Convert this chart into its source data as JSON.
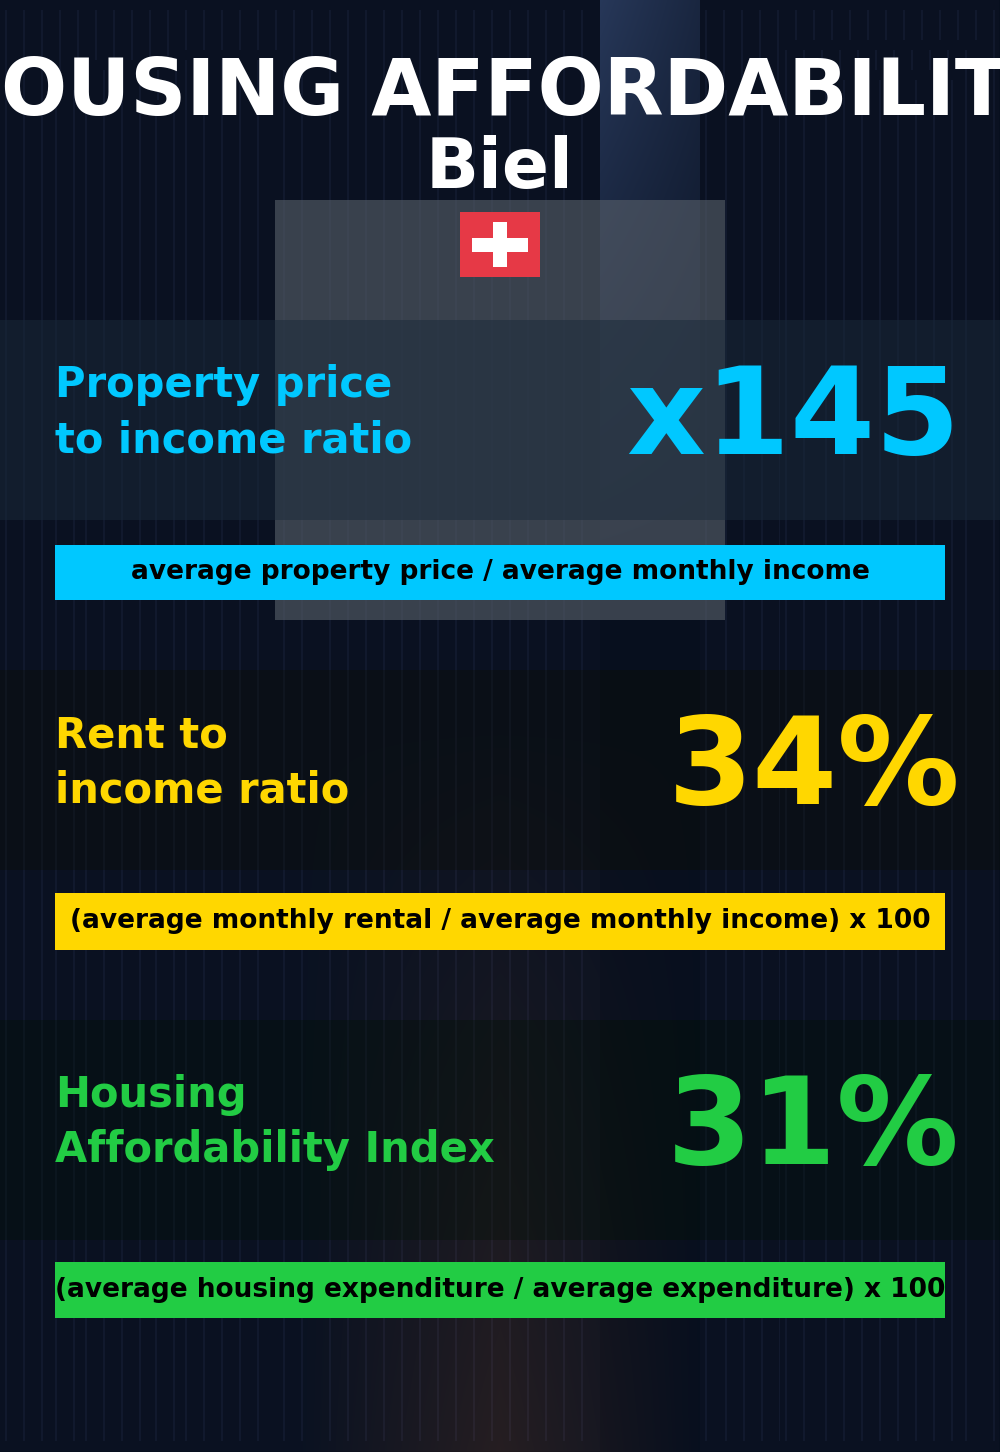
{
  "title_line1": "HOUSING AFFORDABILITY",
  "title_line2": "Biel",
  "title_color": "#ffffff",
  "title_line1_fontsize": 56,
  "title_line2_fontsize": 50,
  "bg_color": "#060d18",
  "section1_label": "Property price\nto income ratio",
  "section1_value": "x145",
  "section1_label_color": "#00c8ff",
  "section1_value_color": "#00c8ff",
  "section1_formula": "average property price / average monthly income",
  "section1_formula_bg": "#00c8ff",
  "section1_formula_color": "#000000",
  "section2_label": "Rent to\nincome ratio",
  "section2_value": "34%",
  "section2_label_color": "#ffd700",
  "section2_value_color": "#ffd700",
  "section2_formula": "(average monthly rental / average monthly income) x 100",
  "section2_formula_bg": "#ffd700",
  "section2_formula_color": "#000000",
  "section3_label": "Housing\nAffordability Index",
  "section3_value": "31%",
  "section3_label_color": "#22cc44",
  "section3_value_color": "#22cc44",
  "section3_formula": "(average housing expenditure / average expenditure) x 100",
  "section3_formula_bg": "#22cc44",
  "section3_formula_color": "#000000",
  "flag_red": "#e63946",
  "flag_white": "#ffffff",
  "label_fontsize": 30,
  "value_fontsize": 88,
  "formula_fontsize": 19
}
